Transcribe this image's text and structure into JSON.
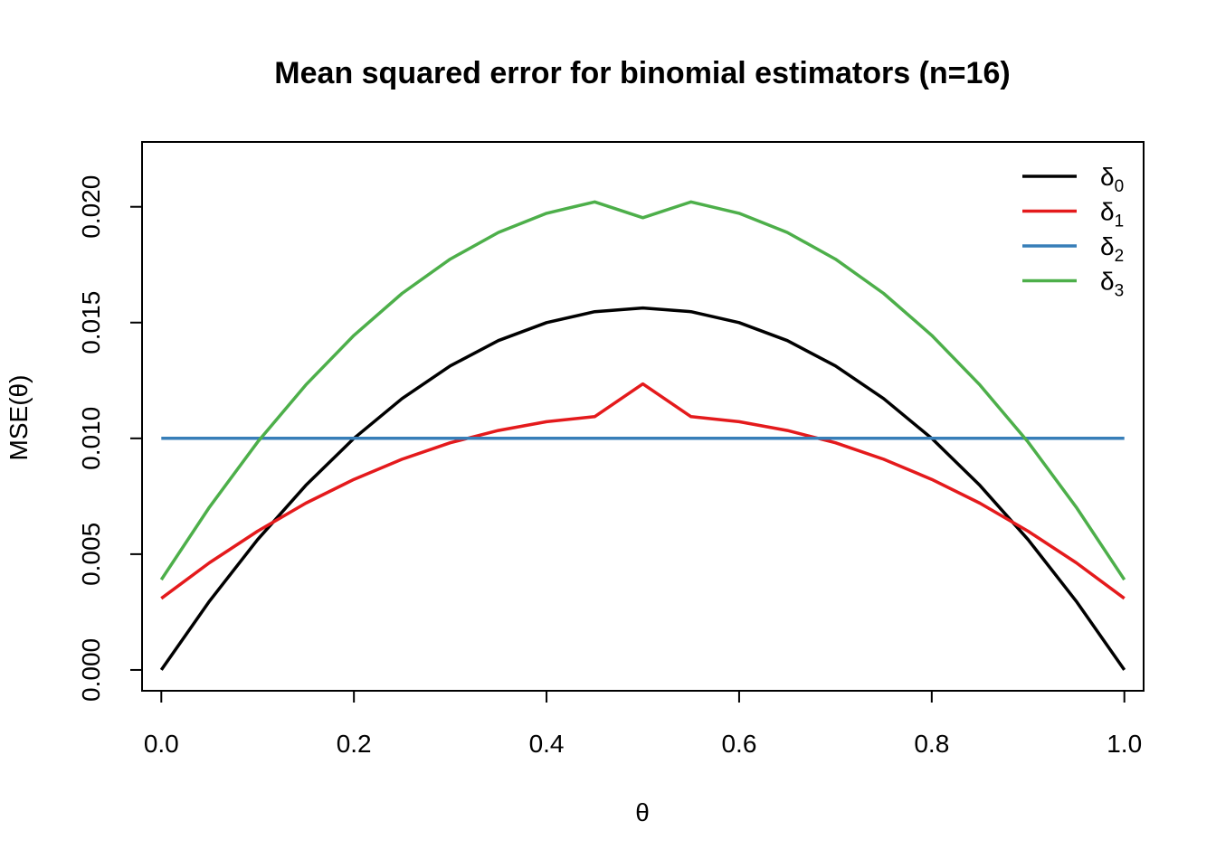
{
  "chart_data": {
    "type": "line",
    "title": "Mean squared error for binomial estimators (n=16)",
    "xlabel": "θ",
    "ylabel": "MSE(θ)",
    "xlim": [
      -0.02,
      1.02
    ],
    "ylim": [
      -0.0009,
      0.0228
    ],
    "xticks": [
      "0.0",
      "0.2",
      "0.4",
      "0.6",
      "0.8",
      "1.0"
    ],
    "yticks": [
      "0.000",
      "0.005",
      "0.010",
      "0.015",
      "0.020"
    ],
    "xtick_values": [
      0,
      0.2,
      0.4,
      0.6,
      0.8,
      1.0
    ],
    "ytick_values": [
      0,
      0.005,
      0.01,
      0.015,
      0.02
    ],
    "grid": false,
    "legend_position": "top-right",
    "x": [
      0,
      0.05,
      0.1,
      0.15,
      0.2,
      0.25,
      0.3,
      0.35,
      0.4,
      0.45,
      0.5,
      0.55,
      0.6,
      0.65,
      0.7,
      0.75,
      0.8,
      0.85,
      0.9,
      0.95,
      1.0
    ],
    "series": [
      {
        "name": "δ",
        "subscript": "0",
        "color": "#000000",
        "values": [
          0,
          0.00297,
          0.00563,
          0.00797,
          0.01,
          0.01172,
          0.01313,
          0.01422,
          0.015,
          0.01547,
          0.01563,
          0.01547,
          0.015,
          0.01422,
          0.01313,
          0.01172,
          0.01,
          0.00797,
          0.00563,
          0.00297,
          0
        ]
      },
      {
        "name": "δ",
        "subscript": "1",
        "color": "#e41a1c",
        "values": [
          0.00309,
          0.00463,
          0.00599,
          0.0072,
          0.00823,
          0.0091,
          0.00981,
          0.01034,
          0.01072,
          0.01094,
          0.01235,
          0.01094,
          0.01072,
          0.01034,
          0.00981,
          0.0091,
          0.00823,
          0.0072,
          0.00599,
          0.00463,
          0.00309
        ]
      },
      {
        "name": "δ",
        "subscript": "2",
        "color": "#377eb8",
        "values": [
          0.01,
          0.01,
          0.01,
          0.01,
          0.01,
          0.01,
          0.01,
          0.01,
          0.01,
          0.01,
          0.01,
          0.01,
          0.01,
          0.01,
          0.01,
          0.01,
          0.01,
          0.01,
          0.01,
          0.01,
          0.01
        ]
      },
      {
        "name": "δ",
        "subscript": "3",
        "color": "#4daf4a",
        "values": [
          0.0039,
          0.00703,
          0.00984,
          0.01231,
          0.01445,
          0.01626,
          0.01774,
          0.01889,
          0.01972,
          0.02021,
          0.01953,
          0.02021,
          0.01972,
          0.01889,
          0.01774,
          0.01626,
          0.01445,
          0.01231,
          0.00984,
          0.00703,
          0.0039
        ]
      }
    ]
  }
}
